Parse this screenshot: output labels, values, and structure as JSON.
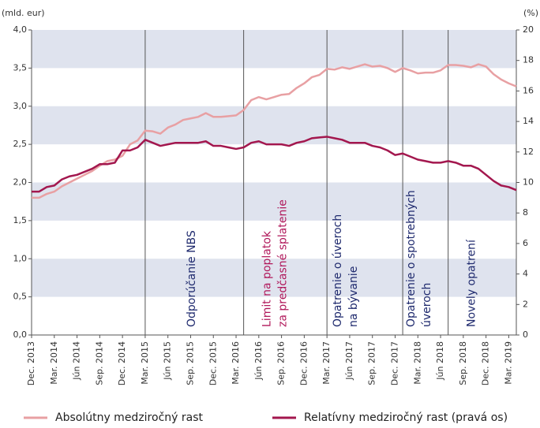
{
  "chart_data": {
    "type": "line",
    "y_unit_label": "(mld. eur)",
    "y2_unit_label": "(%)",
    "categories": [
      "Dec. 2013",
      null,
      null,
      "Mar. 2014",
      null,
      null,
      "Jún 2014",
      null,
      null,
      "Sep. 2014",
      null,
      null,
      "Dec. 2014",
      null,
      null,
      "Mar. 2015",
      null,
      null,
      "Jún 2015",
      null,
      null,
      "Sep. 2015",
      null,
      null,
      "Dec. 2015",
      null,
      null,
      "Mar. 2016",
      null,
      null,
      "Jún 2016",
      null,
      null,
      "Sep. 2016",
      null,
      null,
      "Dec. 2016",
      null,
      null,
      "Mar. 2017",
      null,
      null,
      "Jún 2017",
      null,
      null,
      "Sep. 2017",
      null,
      null,
      "Dec. 2017",
      null,
      null,
      "Mar. 2018",
      null,
      null,
      "Jún 2018",
      null,
      null,
      "Sep. 2018",
      null,
      null,
      "Dec. 2018",
      null,
      null,
      "Mar. 2019",
      null
    ],
    "series": [
      {
        "name": "Absolútny medziročný rast",
        "color": "#e8a0a3",
        "axis": "y",
        "values": [
          1.8,
          1.8,
          1.85,
          1.88,
          1.95,
          2.0,
          2.05,
          2.1,
          2.15,
          2.22,
          2.28,
          2.3,
          2.35,
          2.5,
          2.55,
          2.68,
          2.67,
          2.64,
          2.72,
          2.76,
          2.82,
          2.84,
          2.86,
          2.91,
          2.86,
          2.86,
          2.87,
          2.88,
          2.95,
          3.08,
          3.12,
          3.09,
          3.12,
          3.15,
          3.16,
          3.24,
          3.3,
          3.38,
          3.41,
          3.49,
          3.48,
          3.51,
          3.49,
          3.52,
          3.55,
          3.52,
          3.53,
          3.5,
          3.45,
          3.5,
          3.47,
          3.43,
          3.44,
          3.44,
          3.47,
          3.54,
          3.54,
          3.53,
          3.51,
          3.55,
          3.52,
          3.42,
          3.35,
          3.3,
          3.26
        ]
      },
      {
        "name": "Relatívny medziročný rast (pravá os)",
        "color": "#a3174e",
        "axis": "y2",
        "values": [
          9.4,
          9.4,
          9.7,
          9.8,
          10.2,
          10.4,
          10.5,
          10.7,
          10.9,
          11.2,
          11.2,
          11.3,
          12.1,
          12.1,
          12.3,
          12.8,
          12.6,
          12.4,
          12.5,
          12.6,
          12.6,
          12.6,
          12.6,
          12.7,
          12.4,
          12.4,
          12.3,
          12.2,
          12.3,
          12.6,
          12.7,
          12.5,
          12.5,
          12.5,
          12.4,
          12.6,
          12.7,
          12.9,
          12.95,
          13.0,
          12.9,
          12.8,
          12.6,
          12.6,
          12.6,
          12.4,
          12.3,
          12.1,
          11.8,
          11.9,
          11.7,
          11.5,
          11.4,
          11.3,
          11.3,
          11.4,
          11.3,
          11.1,
          11.1,
          10.9,
          10.5,
          10.1,
          9.8,
          9.7,
          9.5
        ]
      }
    ],
    "ylim": [
      0,
      4
    ],
    "yticks": [
      {
        "value": 0,
        "label": "0,0"
      },
      {
        "value": 0.5,
        "label": "0,5"
      },
      {
        "value": 1,
        "label": "1,0"
      },
      {
        "value": 1.5,
        "label": "1,5"
      },
      {
        "value": 2,
        "label": "2,0"
      },
      {
        "value": 2.5,
        "label": "2,5"
      },
      {
        "value": 3,
        "label": "3,0"
      },
      {
        "value": 3.5,
        "label": "3,5"
      },
      {
        "value": 4,
        "label": "4,0"
      }
    ],
    "y2lim": [
      0,
      20
    ],
    "y2ticks": [
      0,
      2,
      4,
      6,
      8,
      10,
      12,
      14,
      16,
      18,
      20
    ],
    "grid": "banded",
    "band_color": "#dfe3ee",
    "annotations": [
      {
        "at": 15,
        "lines": [
          "Odporúčanie NBS"
        ],
        "color": "#1f2a6e"
      },
      {
        "at": 28,
        "lines": [
          "Limit na poplatok",
          "za predčasné splatenie"
        ],
        "color": "#b0175a"
      },
      {
        "at": 39,
        "lines": [
          "Opatrenie o úveroch",
          "na bývanie"
        ],
        "color": "#1f2a6e"
      },
      {
        "at": 49,
        "lines": [
          "Opatrenie o spotrebných",
          "úveroch"
        ],
        "color": "#1f2a6e"
      },
      {
        "at": 55,
        "lines": [
          "Novely opatrení"
        ],
        "color": "#1f2a6e"
      }
    ],
    "legend": "bottom"
  }
}
